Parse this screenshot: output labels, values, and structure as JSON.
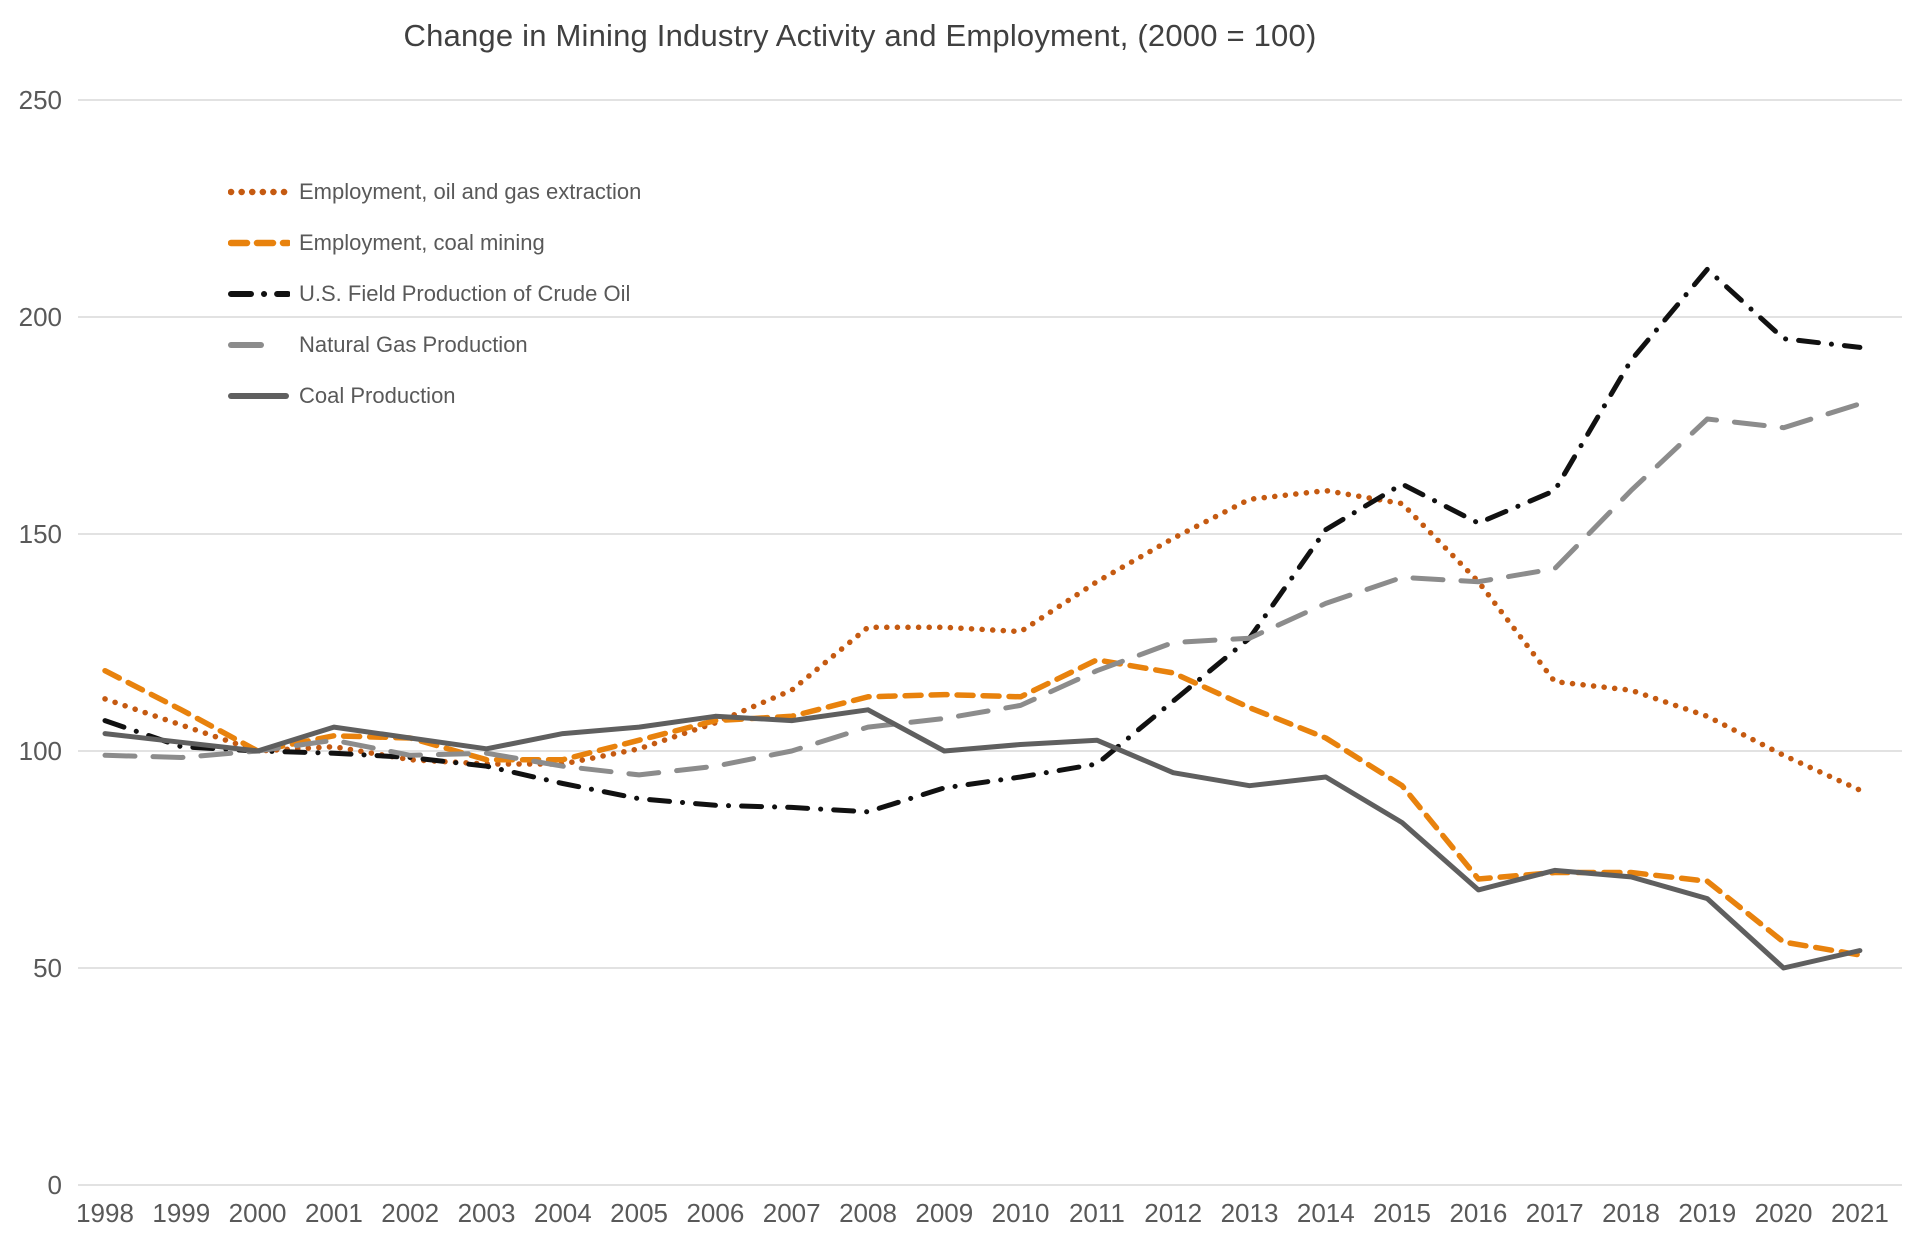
{
  "title": "Change in Mining Industry Activity and Employment, (2000 = 100)",
  "colors": {
    "background": "#ffffff",
    "gridline": "#d9d9d9",
    "axis_label": "#595959",
    "title_text": "#404040",
    "oil_gas_employment": "#c55a11",
    "coal_employment": "#e8820d",
    "crude_oil": "#111111",
    "natural_gas": "#8c8c8c",
    "coal_production": "#5f5f5f"
  },
  "chart_data": {
    "type": "line",
    "title": "Change in Mining Industry Activity and Employment, (2000 = 100)",
    "xlabel": "",
    "ylabel": "",
    "grid": true,
    "legend_position": "inside-top-left",
    "ylim": [
      0,
      250
    ],
    "yticks": [
      0,
      50,
      100,
      150,
      200,
      250
    ],
    "x": [
      1998,
      1999,
      2000,
      2001,
      2002,
      2003,
      2004,
      2005,
      2006,
      2007,
      2008,
      2009,
      2010,
      2011,
      2012,
      2013,
      2014,
      2015,
      2016,
      2017,
      2018,
      2019,
      2020,
      2021
    ],
    "series": [
      {
        "name": "Employment, oil and gas extraction",
        "style": "dotted",
        "color": "#c55a11",
        "values": [
          112,
          106,
          100,
          101,
          98,
          97,
          97,
          100.5,
          106.5,
          114,
          128.5,
          128.5,
          127.5,
          139,
          149,
          158,
          160,
          157,
          139,
          116,
          114,
          108,
          99,
          91
        ]
      },
      {
        "name": "Employment, coal mining",
        "style": "dashed",
        "color": "#e8820d",
        "values": [
          118.5,
          109.5,
          100,
          103.5,
          103,
          98,
          98,
          102.5,
          107,
          108,
          112.5,
          113,
          112.5,
          121,
          118,
          110,
          103,
          92,
          70.5,
          72,
          72,
          70,
          56,
          53
        ]
      },
      {
        "name": "U.S. Field Production of Crude Oil",
        "style": "dashdot",
        "color": "#111111",
        "values": [
          107,
          101,
          100,
          99.5,
          98.5,
          96.5,
          92.5,
          89,
          87.5,
          87,
          86,
          91.5,
          94,
          97,
          111.5,
          126,
          151,
          161.5,
          152.5,
          160,
          190,
          211,
          195,
          193
        ]
      },
      {
        "name": "Natural Gas Production",
        "style": "longdash",
        "color": "#8c8c8c",
        "values": [
          99,
          98.5,
          100,
          102.5,
          99,
          99.5,
          96.5,
          94.5,
          96.5,
          100,
          105.5,
          107.5,
          110.5,
          118.5,
          125,
          126,
          134,
          140,
          139,
          142,
          160,
          176.5,
          174.5,
          180
        ]
      },
      {
        "name": "Coal Production",
        "style": "solid",
        "color": "#5f5f5f",
        "values": [
          104,
          102,
          100,
          105.5,
          103,
          100.5,
          104,
          105.5,
          108,
          107,
          109.5,
          100,
          101.5,
          102.5,
          95,
          92,
          94,
          83.5,
          68,
          72.5,
          71,
          66,
          50,
          54
        ]
      }
    ]
  }
}
